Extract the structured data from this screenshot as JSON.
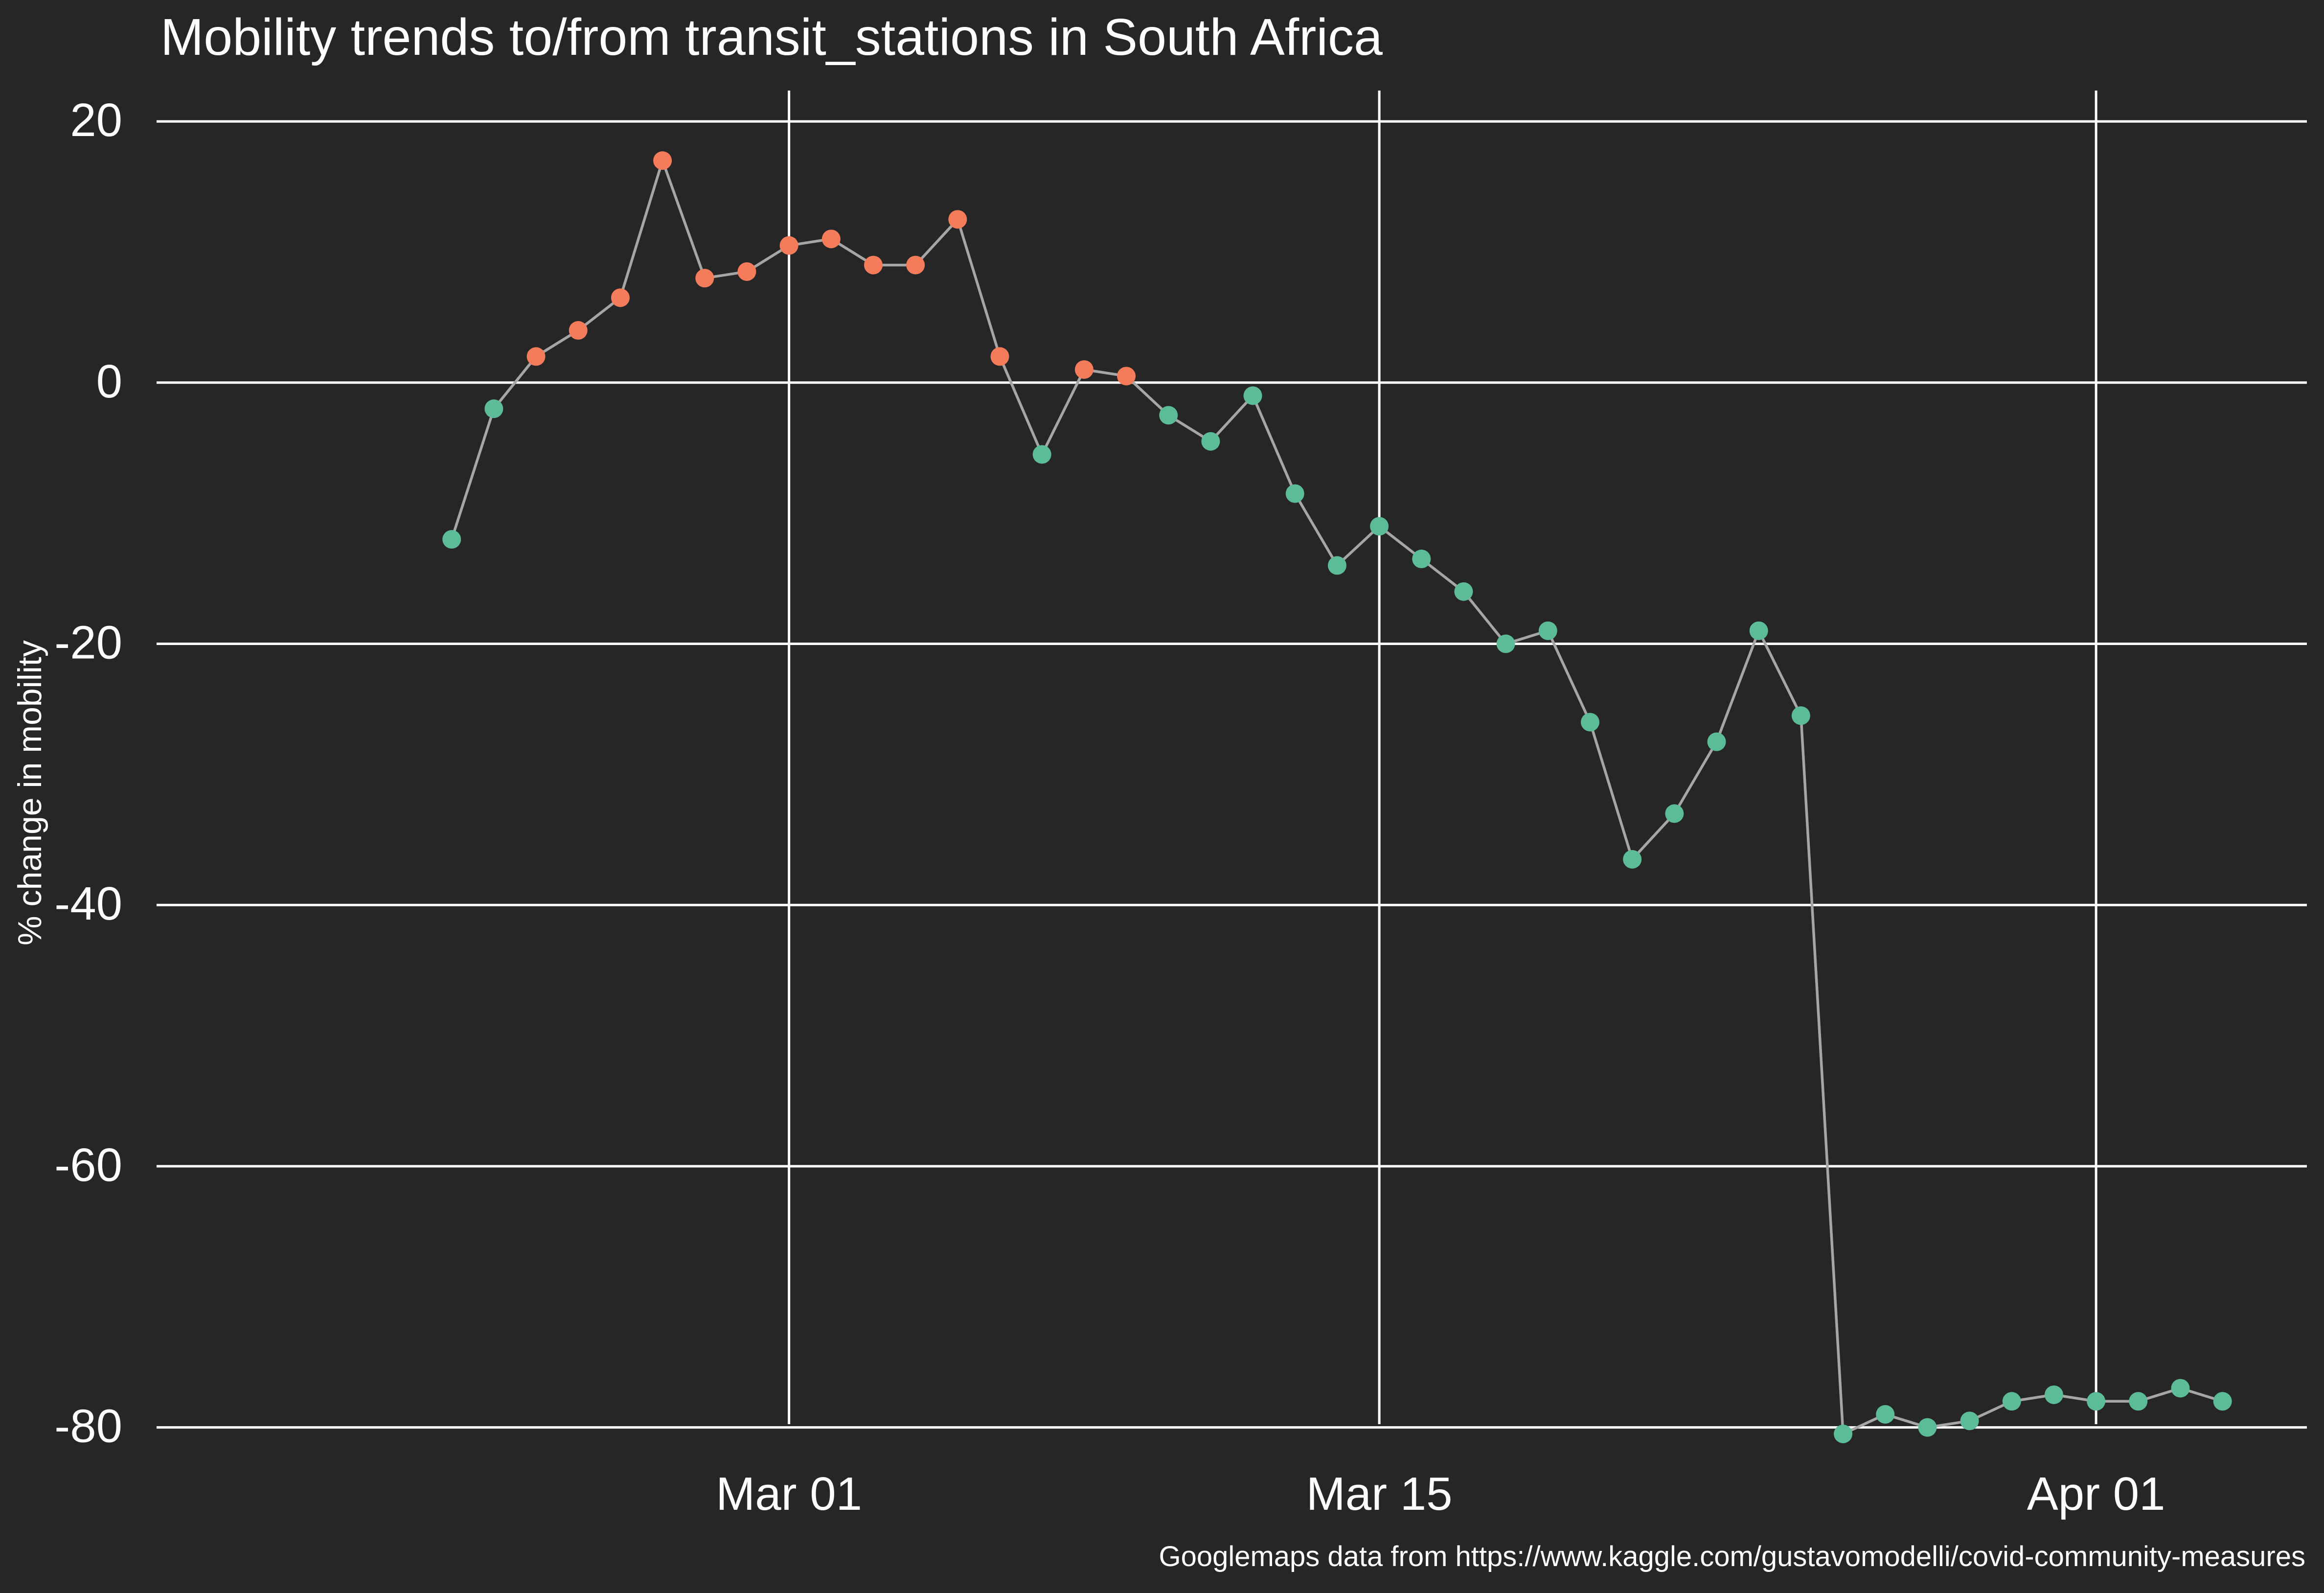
{
  "chart_data": {
    "type": "line",
    "title": "Mobility trends to/from transit_stations in South Africa",
    "ylabel": "% change in mobility",
    "xlabel": "",
    "caption": "Googlemaps data from https://www.kaggle.com/gustavomodelli/covid-community-measures",
    "ylim": [
      -80,
      20
    ],
    "xlim": [
      "2020-02-15",
      "2020-04-06"
    ],
    "grid": true,
    "legend": "none",
    "y_ticks": [
      {
        "value": 20,
        "label": "20"
      },
      {
        "value": 0,
        "label": "0"
      },
      {
        "value": -20,
        "label": "-20"
      },
      {
        "value": -40,
        "label": "-40"
      },
      {
        "value": -60,
        "label": "-60"
      },
      {
        "value": -80,
        "label": "-80"
      }
    ],
    "x_ticks": [
      {
        "date": "2020-03-01",
        "label": "Mar 01"
      },
      {
        "date": "2020-03-15",
        "label": "Mar 15"
      },
      {
        "date": "2020-04-01",
        "label": "Apr 01"
      }
    ],
    "colors": {
      "background": "#262626",
      "grid": "#ffffff",
      "line": "#a6a6a6",
      "point_above_baseline": "#f47c5a",
      "point_below_baseline": "#5bbc97",
      "text": "#ffffff"
    },
    "series": [
      {
        "points": [
          {
            "x": "2020-02-22",
            "y": -12
          },
          {
            "x": "2020-02-23",
            "y": -2
          },
          {
            "x": "2020-02-24",
            "y": 2
          },
          {
            "x": "2020-02-25",
            "y": 4
          },
          {
            "x": "2020-02-26",
            "y": 6.5
          },
          {
            "x": "2020-02-27",
            "y": 17
          },
          {
            "x": "2020-02-28",
            "y": 8
          },
          {
            "x": "2020-02-29",
            "y": 8.5
          },
          {
            "x": "2020-03-01",
            "y": 10.5
          },
          {
            "x": "2020-03-02",
            "y": 11
          },
          {
            "x": "2020-03-03",
            "y": 9
          },
          {
            "x": "2020-03-04",
            "y": 9
          },
          {
            "x": "2020-03-05",
            "y": 12.5
          },
          {
            "x": "2020-03-06",
            "y": 2
          },
          {
            "x": "2020-03-07",
            "y": -5.5
          },
          {
            "x": "2020-03-08",
            "y": 1
          },
          {
            "x": "2020-03-09",
            "y": 0.5
          },
          {
            "x": "2020-03-10",
            "y": -2.5
          },
          {
            "x": "2020-03-11",
            "y": -4.5
          },
          {
            "x": "2020-03-12",
            "y": -1
          },
          {
            "x": "2020-03-13",
            "y": -8.5
          },
          {
            "x": "2020-03-14",
            "y": -14
          },
          {
            "x": "2020-03-15",
            "y": -11
          },
          {
            "x": "2020-03-16",
            "y": -13.5
          },
          {
            "x": "2020-03-17",
            "y": -16
          },
          {
            "x": "2020-03-18",
            "y": -20
          },
          {
            "x": "2020-03-19",
            "y": -19
          },
          {
            "x": "2020-03-20",
            "y": -26
          },
          {
            "x": "2020-03-21",
            "y": -36.5
          },
          {
            "x": "2020-03-22",
            "y": -33
          },
          {
            "x": "2020-03-23",
            "y": -27.5
          },
          {
            "x": "2020-03-24",
            "y": -19
          },
          {
            "x": "2020-03-25",
            "y": -25.5
          },
          {
            "x": "2020-03-26",
            "y": -80.5
          },
          {
            "x": "2020-03-27",
            "y": -79
          },
          {
            "x": "2020-03-28",
            "y": -80
          },
          {
            "x": "2020-03-29",
            "y": -79.5
          },
          {
            "x": "2020-03-30",
            "y": -78
          },
          {
            "x": "2020-03-31",
            "y": -77.5
          },
          {
            "x": "2020-04-01",
            "y": -78
          },
          {
            "x": "2020-04-02",
            "y": -78
          },
          {
            "x": "2020-04-03",
            "y": -77
          },
          {
            "x": "2020-04-04",
            "y": -78
          }
        ]
      }
    ]
  }
}
